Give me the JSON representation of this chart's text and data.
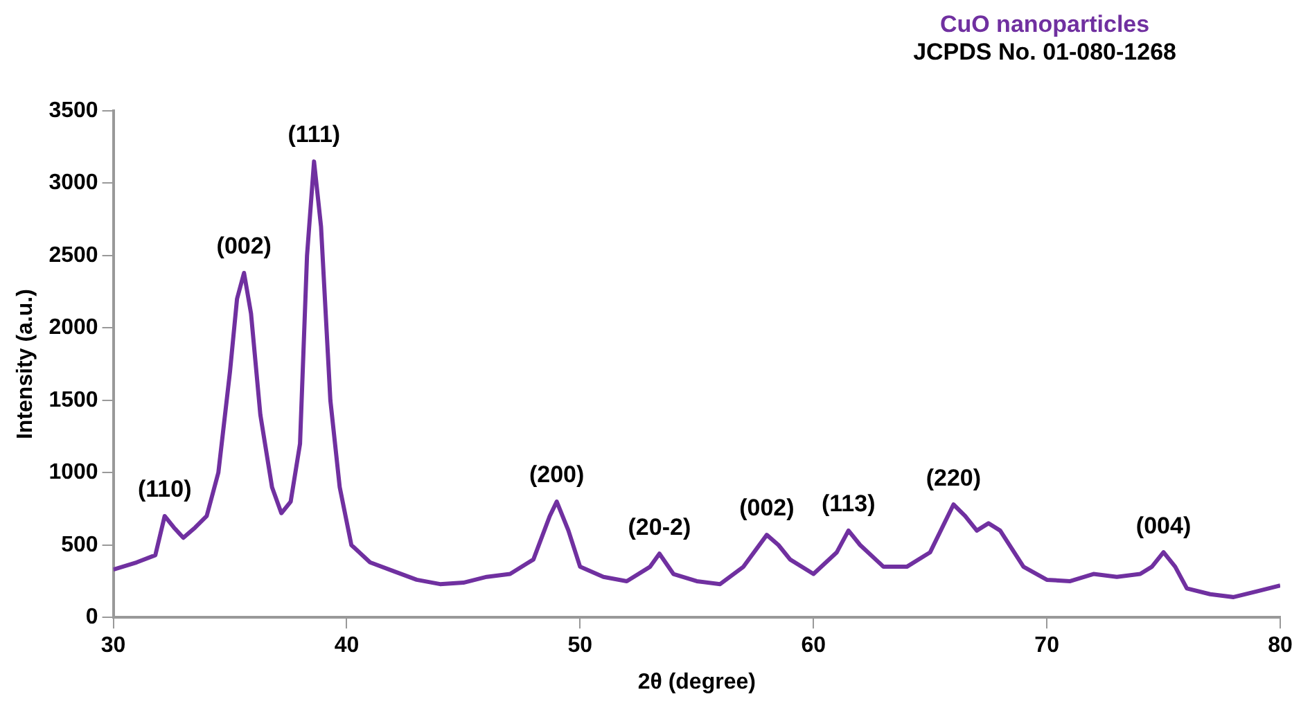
{
  "chart_data": {
    "type": "line",
    "title": "CuO nanoparticles",
    "subtitle": "JCPDS No. 01-080-1268",
    "xlabel": "2θ (degree)",
    "ylabel": "Intensity (a.u.)",
    "xlim": [
      30,
      80
    ],
    "xticks": [
      30,
      40,
      50,
      60,
      70,
      80
    ],
    "ylim": [
      0,
      3500
    ],
    "yticks": [
      0,
      500,
      1000,
      1500,
      2000,
      2500,
      3000,
      3500
    ],
    "grid": false,
    "legend": false,
    "marker": "none",
    "line_style": "solid",
    "series": [
      {
        "color": "#7030a0",
        "x": [
          30,
          31,
          31.8,
          32.2,
          32.6,
          33,
          33.5,
          34,
          34.5,
          35,
          35.3,
          35.6,
          35.9,
          36.3,
          36.8,
          37.2,
          37.6,
          38,
          38.3,
          38.6,
          38.9,
          39.3,
          39.7,
          40.2,
          41,
          42,
          43,
          44,
          45,
          46,
          47,
          48,
          48.7,
          49,
          49.5,
          50,
          51,
          52,
          53,
          53.4,
          54,
          55,
          56,
          57,
          58,
          58.5,
          59,
          60,
          61,
          61.5,
          62,
          63,
          64,
          65,
          66,
          66.5,
          67,
          67.5,
          68,
          69,
          70,
          71,
          72,
          73,
          74,
          74.5,
          75,
          75.5,
          76,
          77,
          78,
          79,
          80
        ],
        "values": [
          330,
          380,
          430,
          700,
          620,
          550,
          620,
          700,
          1000,
          1700,
          2200,
          2380,
          2100,
          1400,
          900,
          720,
          800,
          1200,
          2500,
          3150,
          2700,
          1500,
          900,
          500,
          380,
          320,
          260,
          230,
          240,
          280,
          300,
          400,
          700,
          800,
          600,
          350,
          280,
          250,
          350,
          440,
          300,
          250,
          230,
          350,
          570,
          500,
          400,
          300,
          450,
          600,
          500,
          350,
          350,
          450,
          780,
          700,
          600,
          650,
          600,
          350,
          260,
          250,
          300,
          280,
          300,
          350,
          450,
          350,
          200,
          160,
          140,
          180,
          220
        ]
      }
    ],
    "annotations": [
      {
        "text": "(110)",
        "x": 32.2,
        "y": 700
      },
      {
        "text": "(002)",
        "x": 35.6,
        "y": 2380
      },
      {
        "text": "(111)",
        "x": 38.6,
        "y": 3150
      },
      {
        "text": "(200)",
        "x": 49,
        "y": 800
      },
      {
        "text": "(20-2)",
        "x": 53.4,
        "y": 440
      },
      {
        "text": "(002)",
        "x": 58,
        "y": 570
      },
      {
        "text": "(113)",
        "x": 61.5,
        "y": 600
      },
      {
        "text": "(220)",
        "x": 66,
        "y": 780
      },
      {
        "text": "(004)",
        "x": 75,
        "y": 450
      }
    ]
  }
}
